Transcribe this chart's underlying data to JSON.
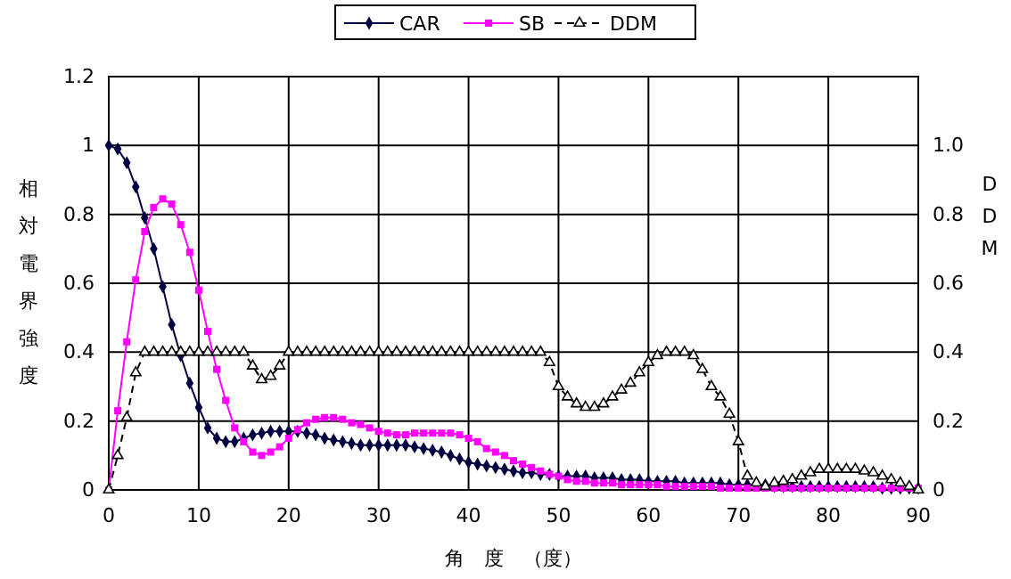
{
  "chart_data": {
    "type": "line",
    "xlabel": "角　度　（度）",
    "ylabel": "相対電界強度",
    "y2label": "DDM",
    "x": [
      0,
      1,
      2,
      3,
      4,
      5,
      6,
      7,
      8,
      9,
      10,
      11,
      12,
      13,
      14,
      15,
      16,
      17,
      18,
      19,
      20,
      21,
      22,
      23,
      24,
      25,
      26,
      27,
      28,
      29,
      30,
      31,
      32,
      33,
      34,
      35,
      36,
      37,
      38,
      39,
      40,
      41,
      42,
      43,
      44,
      45,
      46,
      47,
      48,
      49,
      50,
      51,
      52,
      53,
      54,
      55,
      56,
      57,
      58,
      59,
      60,
      61,
      62,
      63,
      64,
      65,
      66,
      67,
      68,
      69,
      70,
      71,
      72,
      73,
      74,
      75,
      76,
      77,
      78,
      79,
      80,
      81,
      82,
      83,
      84,
      85,
      86,
      87,
      88,
      89,
      90
    ],
    "xlim": [
      0,
      90
    ],
    "xticks": [
      0,
      10,
      20,
      30,
      40,
      50,
      60,
      70,
      80,
      90
    ],
    "ylim": [
      0,
      1.2
    ],
    "yticks": [
      0,
      0.2,
      0.4,
      0.6,
      0.8,
      1,
      1.2
    ],
    "y2lim": [
      0,
      1.2
    ],
    "y2ticks": [
      0,
      0.2,
      0.4,
      0.6,
      0.8,
      {
        "value": 1,
        "label": "1.0"
      }
    ],
    "grid": true,
    "legend": "top",
    "series": [
      {
        "name": "CAR",
        "color": "#000040",
        "marker": "diamond",
        "line_style": "solid",
        "values": [
          1,
          0.99,
          0.95,
          0.88,
          0.79,
          0.7,
          0.59,
          0.48,
          0.39,
          0.31,
          0.24,
          0.18,
          0.15,
          0.14,
          0.14,
          0.15,
          0.16,
          0.165,
          0.17,
          0.17,
          0.17,
          0.17,
          0.165,
          0.16,
          0.15,
          0.145,
          0.14,
          0.135,
          0.13,
          0.13,
          0.13,
          0.13,
          0.13,
          0.13,
          0.125,
          0.12,
          0.115,
          0.11,
          0.1,
          0.09,
          0.08,
          0.075,
          0.07,
          0.065,
          0.06,
          0.055,
          0.05,
          0.05,
          0.045,
          0.045,
          0.04,
          0.04,
          0.04,
          0.04,
          0.035,
          0.035,
          0.035,
          0.03,
          0.03,
          0.03,
          0.025,
          0.025,
          0.025,
          0.025,
          0.02,
          0.02,
          0.02,
          0.02,
          0.02,
          0.015,
          0.015,
          0.015,
          0.015,
          0.015,
          0.01,
          0.01,
          0.01,
          0.01,
          0.01,
          0.01,
          0.01,
          0.01,
          0.01,
          0.01,
          0.01,
          0.01,
          0.005,
          0.005,
          0.005,
          0.005,
          0.005
        ]
      },
      {
        "name": "SB",
        "color": "#ff00ff",
        "marker": "square",
        "line_style": "solid",
        "values": [
          0,
          0.23,
          0.43,
          0.61,
          0.75,
          0.82,
          0.845,
          0.83,
          0.77,
          0.69,
          0.58,
          0.46,
          0.35,
          0.26,
          0.18,
          0.14,
          0.11,
          0.1,
          0.11,
          0.125,
          0.15,
          0.175,
          0.195,
          0.205,
          0.21,
          0.21,
          0.205,
          0.195,
          0.19,
          0.18,
          0.17,
          0.165,
          0.16,
          0.16,
          0.165,
          0.165,
          0.165,
          0.165,
          0.165,
          0.16,
          0.15,
          0.14,
          0.12,
          0.11,
          0.1,
          0.085,
          0.075,
          0.065,
          0.055,
          0.045,
          0.04,
          0.03,
          0.025,
          0.025,
          0.02,
          0.02,
          0.02,
          0.015,
          0.015,
          0.015,
          0.015,
          0.015,
          0.01,
          0.01,
          0.01,
          0.01,
          0.01,
          0.01,
          0.005,
          0.005,
          0.005,
          0.005,
          0.005,
          0.005,
          0.005,
          0.005,
          0.005,
          0.005,
          0.005,
          0.005,
          0.005,
          0.005,
          0.005,
          0.005,
          0.005,
          0.005,
          0.005,
          0.005,
          0.005,
          0.005,
          0.005
        ]
      },
      {
        "name": "DDM",
        "color": "#000000",
        "marker": "triangle",
        "line_style": "dashed",
        "axis": "y2",
        "values": [
          0,
          0.1,
          0.21,
          0.34,
          0.4,
          0.4,
          0.4,
          0.4,
          0.4,
          0.4,
          0.4,
          0.4,
          0.4,
          0.4,
          0.4,
          0.4,
          0.36,
          0.32,
          0.33,
          0.36,
          0.4,
          0.4,
          0.4,
          0.4,
          0.4,
          0.4,
          0.4,
          0.4,
          0.4,
          0.4,
          0.4,
          0.4,
          0.4,
          0.4,
          0.4,
          0.4,
          0.4,
          0.4,
          0.4,
          0.4,
          0.4,
          0.4,
          0.4,
          0.4,
          0.4,
          0.4,
          0.4,
          0.4,
          0.4,
          0.37,
          0.3,
          0.27,
          0.25,
          0.24,
          0.24,
          0.25,
          0.27,
          0.29,
          0.31,
          0.34,
          0.37,
          0.39,
          0.4,
          0.4,
          0.4,
          0.39,
          0.35,
          0.3,
          0.27,
          0.22,
          0.14,
          0.04,
          0.02,
          0.01,
          0.02,
          0.025,
          0.03,
          0.04,
          0.05,
          0.06,
          0.06,
          0.06,
          0.06,
          0.06,
          0.055,
          0.05,
          0.04,
          0.03,
          0.02,
          0.01,
          0
        ]
      }
    ]
  }
}
